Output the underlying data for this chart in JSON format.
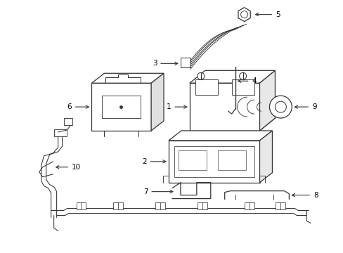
{
  "bg_color": "#ffffff",
  "line_color": "#333333",
  "text_color": "#000000",
  "lw": 0.9,
  "figsize": [
    4.89,
    3.6
  ],
  "dpi": 100
}
